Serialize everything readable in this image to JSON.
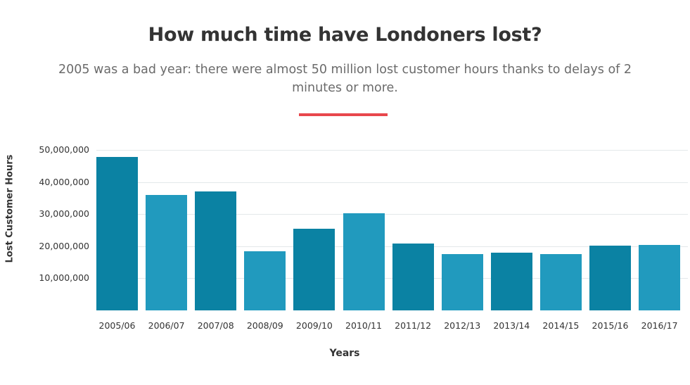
{
  "header": {
    "title": "How much time have Londoners lost?",
    "subtitle": "2005 was a bad year: there were almost 50 million lost customer hours thanks to delays of 2 minutes or more.",
    "accent_rule_color": "#e8474c"
  },
  "colors": {
    "bar_dark": "#0b82a3",
    "bar_light": "#219abe",
    "grid": "#e3e8ea"
  },
  "chart_data": {
    "type": "bar",
    "title": "How much time have Londoners lost?",
    "subtitle": "2005 was a bad year: there were almost 50 million lost customer hours thanks to delays of 2 minutes or more.",
    "xlabel": "Years",
    "ylabel": "Lost Customer Hours",
    "ylim": [
      0,
      50000000
    ],
    "yticks": [
      "10,000,000",
      "20,000,000",
      "30,000,000",
      "40,000,000",
      "50,000,000"
    ],
    "grid": true,
    "legend": null,
    "categories": [
      "2005/06",
      "2006/07",
      "2007/08",
      "2008/09",
      "2009/10",
      "2010/11",
      "2011/12",
      "2012/13",
      "2013/14",
      "2014/15",
      "2015/16",
      "2016/17"
    ],
    "values": [
      47900000,
      36000000,
      37100000,
      18400000,
      25400000,
      30200000,
      20800000,
      17500000,
      17900000,
      17500000,
      20200000,
      20400000
    ]
  }
}
